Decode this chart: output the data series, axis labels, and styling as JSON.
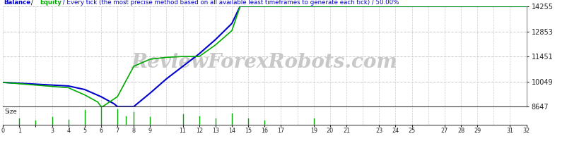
{
  "balance_x": [
    0,
    4,
    5,
    6,
    6.8,
    7,
    8,
    9,
    10,
    11,
    12,
    13,
    14,
    14.5,
    20,
    32
  ],
  "balance_y": [
    10000,
    9800,
    9600,
    9200,
    8800,
    8647,
    8647,
    9400,
    10200,
    10900,
    11600,
    12400,
    13300,
    14255,
    14255,
    14255
  ],
  "equity_x": [
    0,
    4,
    5,
    5.8,
    6,
    6.1,
    7,
    8,
    9,
    10,
    11,
    11.5,
    12,
    13,
    14,
    14.5,
    20,
    32
  ],
  "equity_y": [
    10000,
    9700,
    9300,
    8900,
    8647,
    8647,
    9200,
    10900,
    11300,
    11400,
    11450,
    11450,
    11450,
    12100,
    12900,
    14255,
    14255,
    14255
  ],
  "ylim": [
    8647,
    14255
  ],
  "xlim": [
    0,
    32
  ],
  "yticks": [
    8647,
    10049,
    11451,
    12853,
    14255
  ],
  "xtick_positions": [
    0,
    1,
    2,
    3,
    4,
    5,
    6,
    7,
    8,
    9,
    11,
    12,
    13,
    14,
    15,
    16,
    17,
    19,
    20,
    21,
    23,
    24,
    25,
    27,
    28,
    29,
    31,
    32
  ],
  "xtick_labels": [
    "0",
    "1",
    "",
    "3",
    "4",
    "5",
    "6",
    "7",
    "8",
    "9",
    "11",
    "12",
    "13",
    "14",
    "15",
    "16",
    "17",
    "19",
    "20",
    "21",
    "23",
    "24",
    "25",
    "27",
    "28",
    "29",
    "31",
    "32"
  ],
  "balance_color": "#0000cc",
  "equity_color": "#00aa00",
  "background_color": "#ffffff",
  "grid_color": "#cccccc",
  "watermark": "ReviewForexRobots.com",
  "watermark_color": "#c8c8c8",
  "size_label": "Size",
  "size_x": [
    1,
    2,
    3,
    4,
    5,
    6,
    7,
    7.5,
    8,
    9,
    11,
    12,
    13,
    14,
    15,
    16,
    19
  ],
  "size_heights": [
    0.35,
    0.25,
    0.45,
    0.3,
    0.85,
    1.0,
    0.9,
    0.5,
    0.75,
    0.45,
    0.6,
    0.5,
    0.35,
    0.65,
    0.35,
    0.25,
    0.35
  ],
  "title_balance": "Balance",
  "title_slash1": " / ",
  "title_equity": "Equity",
  "title_rest": " / Every tick (the most precise method based on all available least timeframes to generate each tick) / 50.00%"
}
